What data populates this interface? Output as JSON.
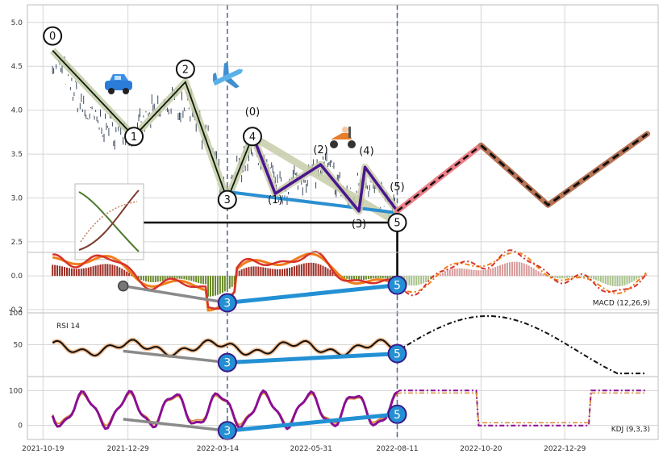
{
  "chart_data": [
    {
      "panel": "price",
      "type": "line",
      "y_ticks": [
        "2.5",
        "3.0",
        "3.5",
        "4.0",
        "4.5",
        "5.0"
      ],
      "ylim": [
        2.38,
        5.2
      ],
      "x_ticks": [
        "2021-10-19",
        "2021-12-29",
        "2022-03-14",
        "2022-05-31",
        "2022-08-11",
        "2022-10-20",
        "2022-12-29"
      ],
      "xlim": [
        "2021-10-06",
        "2023-03-17"
      ],
      "grid": true,
      "price_waypoints": [
        {
          "x": "2021-10-27",
          "y": 4.55
        },
        {
          "x": "2021-11-05",
          "y": 4.45
        },
        {
          "x": "2021-11-15",
          "y": 4.2
        },
        {
          "x": "2021-11-25",
          "y": 3.95
        },
        {
          "x": "2021-12-05",
          "y": 3.85
        },
        {
          "x": "2021-12-18",
          "y": 3.78
        },
        {
          "x": "2022-01-03",
          "y": 3.7
        },
        {
          "x": "2022-01-15",
          "y": 3.9
        },
        {
          "x": "2022-01-28",
          "y": 4.05
        },
        {
          "x": "2022-02-08",
          "y": 4.1
        },
        {
          "x": "2022-02-20",
          "y": 4.05
        },
        {
          "x": "2022-03-01",
          "y": 3.8
        },
        {
          "x": "2022-03-10",
          "y": 3.5
        },
        {
          "x": "2022-03-17",
          "y": 3.1
        },
        {
          "x": "2022-03-22",
          "y": 2.98
        },
        {
          "x": "2022-03-28",
          "y": 3.25
        },
        {
          "x": "2022-04-05",
          "y": 3.45
        },
        {
          "x": "2022-04-15",
          "y": 3.55
        },
        {
          "x": "2022-04-25",
          "y": 3.3
        },
        {
          "x": "2022-05-05",
          "y": 3.1
        },
        {
          "x": "2022-05-18",
          "y": 3.2
        },
        {
          "x": "2022-06-01",
          "y": 3.3
        },
        {
          "x": "2022-06-15",
          "y": 3.35
        },
        {
          "x": "2022-06-25",
          "y": 3.1
        },
        {
          "x": "2022-07-05",
          "y": 2.95
        },
        {
          "x": "2022-07-12",
          "y": 3.3
        },
        {
          "x": "2022-07-25",
          "y": 3.05
        },
        {
          "x": "2022-08-05",
          "y": 2.9
        },
        {
          "x": "2022-08-11",
          "y": 2.85
        }
      ],
      "wave_primary": [
        {
          "label": "0",
          "x": "2021-10-27",
          "y": 4.68
        },
        {
          "label": "1",
          "x": "2022-01-03",
          "y": 3.7
        },
        {
          "label": "2",
          "x": "2022-02-15",
          "y": 4.32
        },
        {
          "label": "3",
          "x": "2022-03-22",
          "y": 2.98
        },
        {
          "label": "4",
          "x": "2022-04-12",
          "y": 3.7
        },
        {
          "label": "5",
          "x": "2022-08-11",
          "y": 2.72
        }
      ],
      "wave_minor": [
        {
          "label": "(0)",
          "x": "2022-04-12",
          "y": 3.72
        },
        {
          "label": "(1)",
          "x": "2022-05-01",
          "y": 3.05
        },
        {
          "label": "(2)",
          "x": "2022-06-08",
          "y": 3.38
        },
        {
          "label": "(3)",
          "x": "2022-07-10",
          "y": 2.85
        },
        {
          "label": "(4)",
          "x": "2022-07-15",
          "y": 3.35
        },
        {
          "label": "(5)",
          "x": "2022-08-11",
          "y": 2.85
        }
      ],
      "trendline": [
        {
          "x": "2022-03-22",
          "y": 3.07
        },
        {
          "x": "2022-08-11",
          "y": 2.83
        }
      ],
      "support_line": [
        {
          "x": "2021-12-25",
          "y": 2.72
        },
        {
          "x": "2022-08-11",
          "y": 2.72
        }
      ],
      "forecast_red": [
        {
          "x": "2022-08-11",
          "y": 2.85
        },
        {
          "x": "2022-10-20",
          "y": 3.6
        }
      ],
      "forecast_brown": [
        {
          "x": "2022-10-20",
          "y": 3.6
        },
        {
          "x": "2022-12-15",
          "y": 2.92
        },
        {
          "x": "2023-03-08",
          "y": 3.73
        }
      ],
      "vlines": [
        "2022-03-22",
        "2022-08-11"
      ]
    },
    {
      "panel": "macd",
      "type": "line",
      "label": "MACD (12,26,9)",
      "y_ticks": [
        "0.0",
        "-0.2"
      ],
      "ylim": [
        -0.22,
        0.14
      ],
      "divergence_gray": [
        {
          "x": "2021-12-25",
          "y": -0.06
        },
        {
          "x": "2022-03-22",
          "y": -0.16
        }
      ],
      "divergence_blue": [
        {
          "x": "2022-03-22",
          "y": -0.16
        },
        {
          "x": "2022-08-11",
          "y": -0.055
        }
      ],
      "markers": [
        {
          "label": "3",
          "x": "2022-03-22",
          "y": -0.16
        },
        {
          "label": "5",
          "x": "2022-08-11",
          "y": -0.055
        }
      ]
    },
    {
      "panel": "rsi",
      "type": "line",
      "label": "RSI 14",
      "y_ticks": [
        "50",
        "100"
      ],
      "ylim": [
        0,
        100
      ],
      "divergence_gray": [
        {
          "x": "2021-12-25",
          "y": 40
        },
        {
          "x": "2022-03-22",
          "y": 22
        }
      ],
      "divergence_blue": [
        {
          "x": "2022-03-22",
          "y": 22
        },
        {
          "x": "2022-08-11",
          "y": 36
        }
      ],
      "markers": [
        {
          "label": "3",
          "x": "2022-03-22",
          "y": 22
        },
        {
          "label": "5",
          "x": "2022-08-11",
          "y": 36
        }
      ]
    },
    {
      "panel": "kdj",
      "type": "line",
      "label": "KDJ (9,3,3)",
      "y_ticks": [
        "0",
        "100"
      ],
      "ylim": [
        -40,
        140
      ],
      "divergence_gray": [
        {
          "x": "2021-12-25",
          "y": 18
        },
        {
          "x": "2022-03-22",
          "y": -15
        }
      ],
      "divergence_blue": [
        {
          "x": "2022-03-22",
          "y": -15
        },
        {
          "x": "2022-08-11",
          "y": 32
        }
      ],
      "markers": [
        {
          "label": "3",
          "x": "2022-03-22",
          "y": -15
        },
        {
          "label": "5",
          "x": "2022-08-11",
          "y": 32
        }
      ]
    }
  ]
}
